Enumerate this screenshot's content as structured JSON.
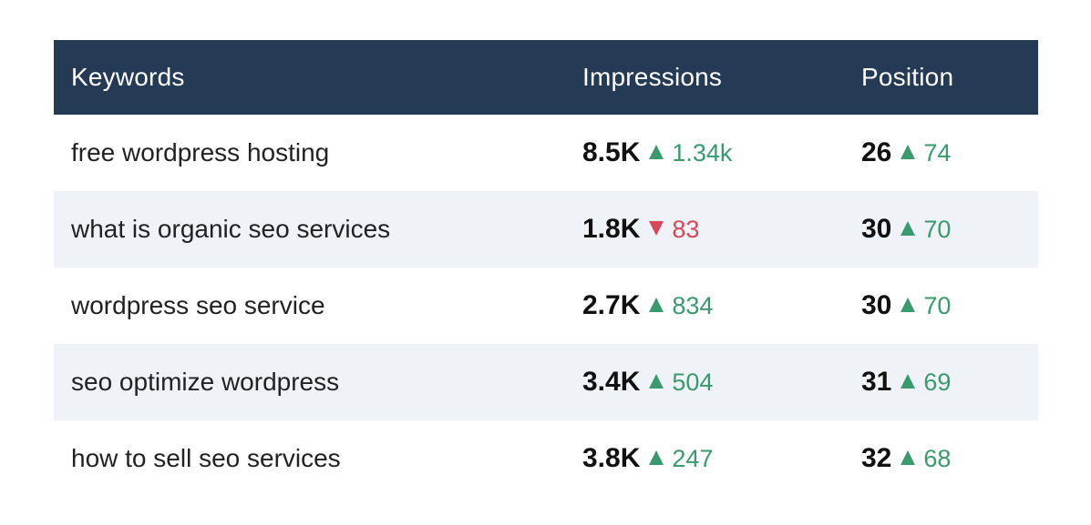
{
  "table": {
    "headers": {
      "keyword": "Keywords",
      "impressions": "Impressions",
      "position": "Position"
    },
    "rows": [
      {
        "keyword": "free wordpress hosting",
        "impressions": "8.5K",
        "impressions_delta": "1.34k",
        "impressions_trend": "up",
        "position": "26",
        "position_delta": "74",
        "position_trend": "up"
      },
      {
        "keyword": "what is organic seo services",
        "impressions": "1.8K",
        "impressions_delta": "83",
        "impressions_trend": "down",
        "position": "30",
        "position_delta": "70",
        "position_trend": "up"
      },
      {
        "keyword": "wordpress seo service",
        "impressions": "2.7K",
        "impressions_delta": "834",
        "impressions_trend": "up",
        "position": "30",
        "position_delta": "70",
        "position_trend": "up"
      },
      {
        "keyword": "seo optimize wordpress",
        "impressions": "3.4K",
        "impressions_delta": "504",
        "impressions_trend": "up",
        "position": "31",
        "position_delta": "69",
        "position_trend": "up"
      },
      {
        "keyword": "how to sell seo services",
        "impressions": "3.8K",
        "impressions_delta": "247",
        "impressions_trend": "up",
        "position": "32",
        "position_delta": "68",
        "position_trend": "up"
      }
    ]
  },
  "colors": {
    "header_bg": "#253a54",
    "alt_row_bg": "#eff3f8",
    "trend_up": "#3a9a6e",
    "trend_down": "#d9475a"
  },
  "icons": {
    "up": "triangle-up-icon",
    "down": "triangle-down-icon"
  }
}
